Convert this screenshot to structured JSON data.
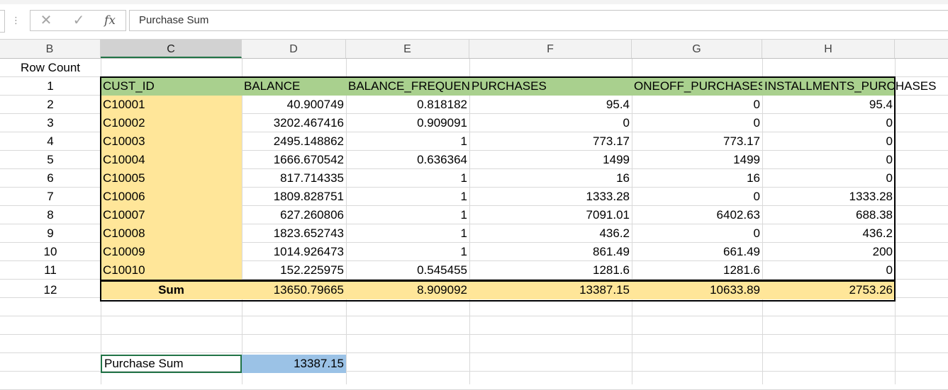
{
  "formula_bar": {
    "cancel_icon": "✕",
    "enter_icon": "✓",
    "fx_label": "fx",
    "content": "Purchase Sum"
  },
  "columns": [
    "B",
    "C",
    "D",
    "E",
    "F",
    "G",
    "H"
  ],
  "selected_column": "C",
  "row_count_label": "Row Count",
  "row_numbers": [
    "1",
    "2",
    "3",
    "4",
    "5",
    "6",
    "7",
    "8",
    "9",
    "10",
    "11",
    "12"
  ],
  "table": {
    "headers": [
      "CUST_ID",
      "BALANCE",
      "BALANCE_FREQUENCY",
      "PURCHASES",
      "ONEOFF_PURCHASES",
      "INSTALLMENTS_PURCHASES"
    ],
    "rows": [
      [
        "C10001",
        "40.900749",
        "0.818182",
        "95.4",
        "0",
        "95.4"
      ],
      [
        "C10002",
        "3202.467416",
        "0.909091",
        "0",
        "0",
        "0"
      ],
      [
        "C10003",
        "2495.148862",
        "1",
        "773.17",
        "773.17",
        "0"
      ],
      [
        "C10004",
        "1666.670542",
        "0.636364",
        "1499",
        "1499",
        "0"
      ],
      [
        "C10005",
        "817.714335",
        "1",
        "16",
        "16",
        "0"
      ],
      [
        "C10006",
        "1809.828751",
        "1",
        "1333.28",
        "0",
        "1333.28"
      ],
      [
        "C10007",
        "627.260806",
        "1",
        "7091.01",
        "6402.63",
        "688.38"
      ],
      [
        "C10008",
        "1823.652743",
        "1",
        "436.2",
        "0",
        "436.2"
      ],
      [
        "C10009",
        "1014.926473",
        "1",
        "861.49",
        "661.49",
        "200"
      ],
      [
        "C10010",
        "152.225975",
        "0.545455",
        "1281.6",
        "1281.6",
        "0"
      ]
    ],
    "sum_row": [
      "Sum",
      "13650.79665",
      "8.909092",
      "13387.15",
      "10633.89",
      "2753.26"
    ]
  },
  "purchase_sum": {
    "label": "Purchase Sum",
    "value": "13387.15"
  },
  "colors": {
    "header_green": "#a9d08e",
    "highlight_yellow": "#ffe699",
    "result_blue": "#9bc2e6",
    "selection_green": "#217346"
  }
}
